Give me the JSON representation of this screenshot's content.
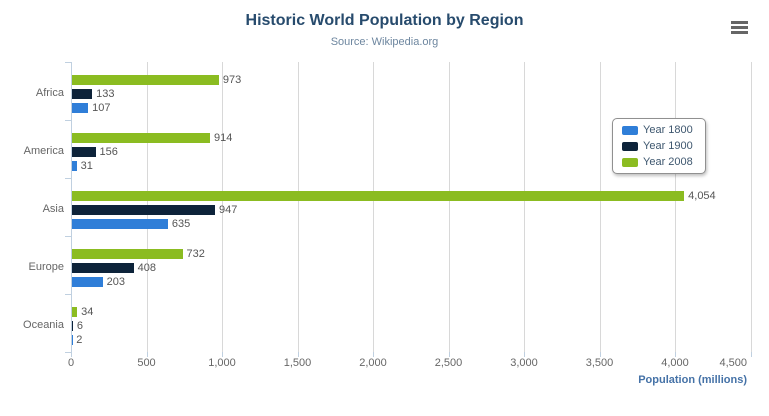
{
  "chart_data": {
    "type": "bar",
    "title": "Historic World Population by Region",
    "subtitle": "Source: Wikipedia.org",
    "categories": [
      "Africa",
      "America",
      "Asia",
      "Europe",
      "Oceania"
    ],
    "series": [
      {
        "name": "Year 1800",
        "color": "#2f7ed8",
        "values": [
          107,
          31,
          635,
          203,
          2
        ]
      },
      {
        "name": "Year 1900",
        "color": "#0d233a",
        "values": [
          133,
          156,
          947,
          408,
          6
        ]
      },
      {
        "name": "Year 2008",
        "color": "#8bbc21",
        "values": [
          973,
          914,
          4054,
          732,
          34
        ]
      }
    ],
    "series_draw_order_top_to_bottom": [
      "Year 2008",
      "Year 1900",
      "Year 1800"
    ],
    "xlabel": "Population (millions)",
    "xlim": [
      0,
      4500
    ],
    "x_tick_interval": 500,
    "x_tick_labels": [
      "0",
      "500",
      "1,000",
      "1,500",
      "2,000",
      "2,500",
      "3,000",
      "3,500",
      "4,000",
      "4,500"
    ],
    "grid": true,
    "data_labels": true,
    "legend_position": "right-center"
  },
  "legend": {
    "items": [
      "Year 1800",
      "Year 1900",
      "Year 2008"
    ]
  },
  "icons": {
    "context_menu": "hamburger-menu-icon"
  },
  "colors": {
    "title": "#274b6d",
    "subtitle": "#6d869f",
    "axis_title": "#4572a7",
    "axis_label": "#666666",
    "category_label": "#666666",
    "value_label": "#555555",
    "grid_line": "#d8d8d8",
    "axis_line": "#c0d0e0",
    "legend_border": "#909090",
    "legend_text": "#3e576f",
    "menu_icon": "#666666",
    "background": "#ffffff"
  }
}
